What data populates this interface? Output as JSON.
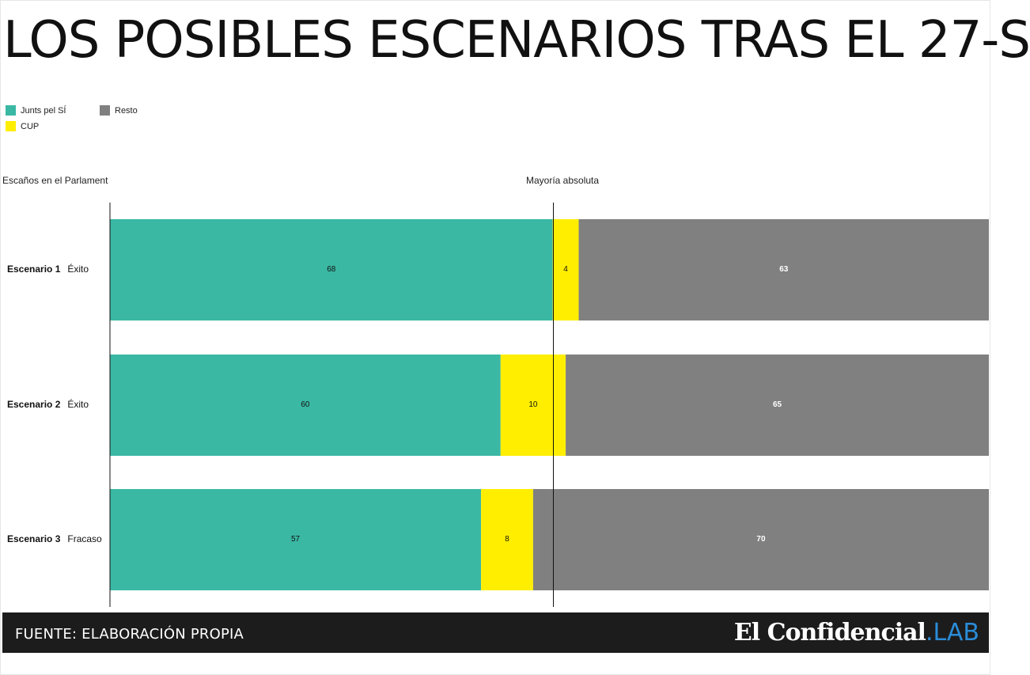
{
  "title": "LOS POSIBLES ESCENARIOS TRAS EL 27-S",
  "legend": [
    {
      "label": "Junts pel SÍ",
      "color": "#3ab8a4"
    },
    {
      "label": "Resto",
      "color": "#808080"
    },
    {
      "label": "CUP",
      "color": "#ffee00"
    }
  ],
  "axis_label": "Escaños en el Parlament",
  "threshold_label": "Mayoría absoluta",
  "footer": {
    "source": "FUENTE: ELABORACIÓN PROPIA",
    "brand": "El Confidencial",
    "brand_suffix": ".LAB"
  },
  "chart_data": {
    "type": "bar",
    "orientation": "horizontal",
    "stacked": true,
    "categories": [
      "Escenario 1",
      "Escenario 2",
      "Escenario 3"
    ],
    "category_notes": [
      "Éxito",
      "Éxito",
      "Fracaso"
    ],
    "series": [
      {
        "name": "Junts pel SÍ",
        "color": "#3ab8a4",
        "values": [
          68,
          60,
          57
        ]
      },
      {
        "name": "CUP",
        "color": "#ffee00",
        "values": [
          4,
          10,
          8
        ]
      },
      {
        "name": "Resto",
        "color": "#808080",
        "values": [
          63,
          65,
          70
        ]
      }
    ],
    "threshold": 68,
    "xlim": [
      0,
      135
    ],
    "legend_position": "top-left"
  }
}
